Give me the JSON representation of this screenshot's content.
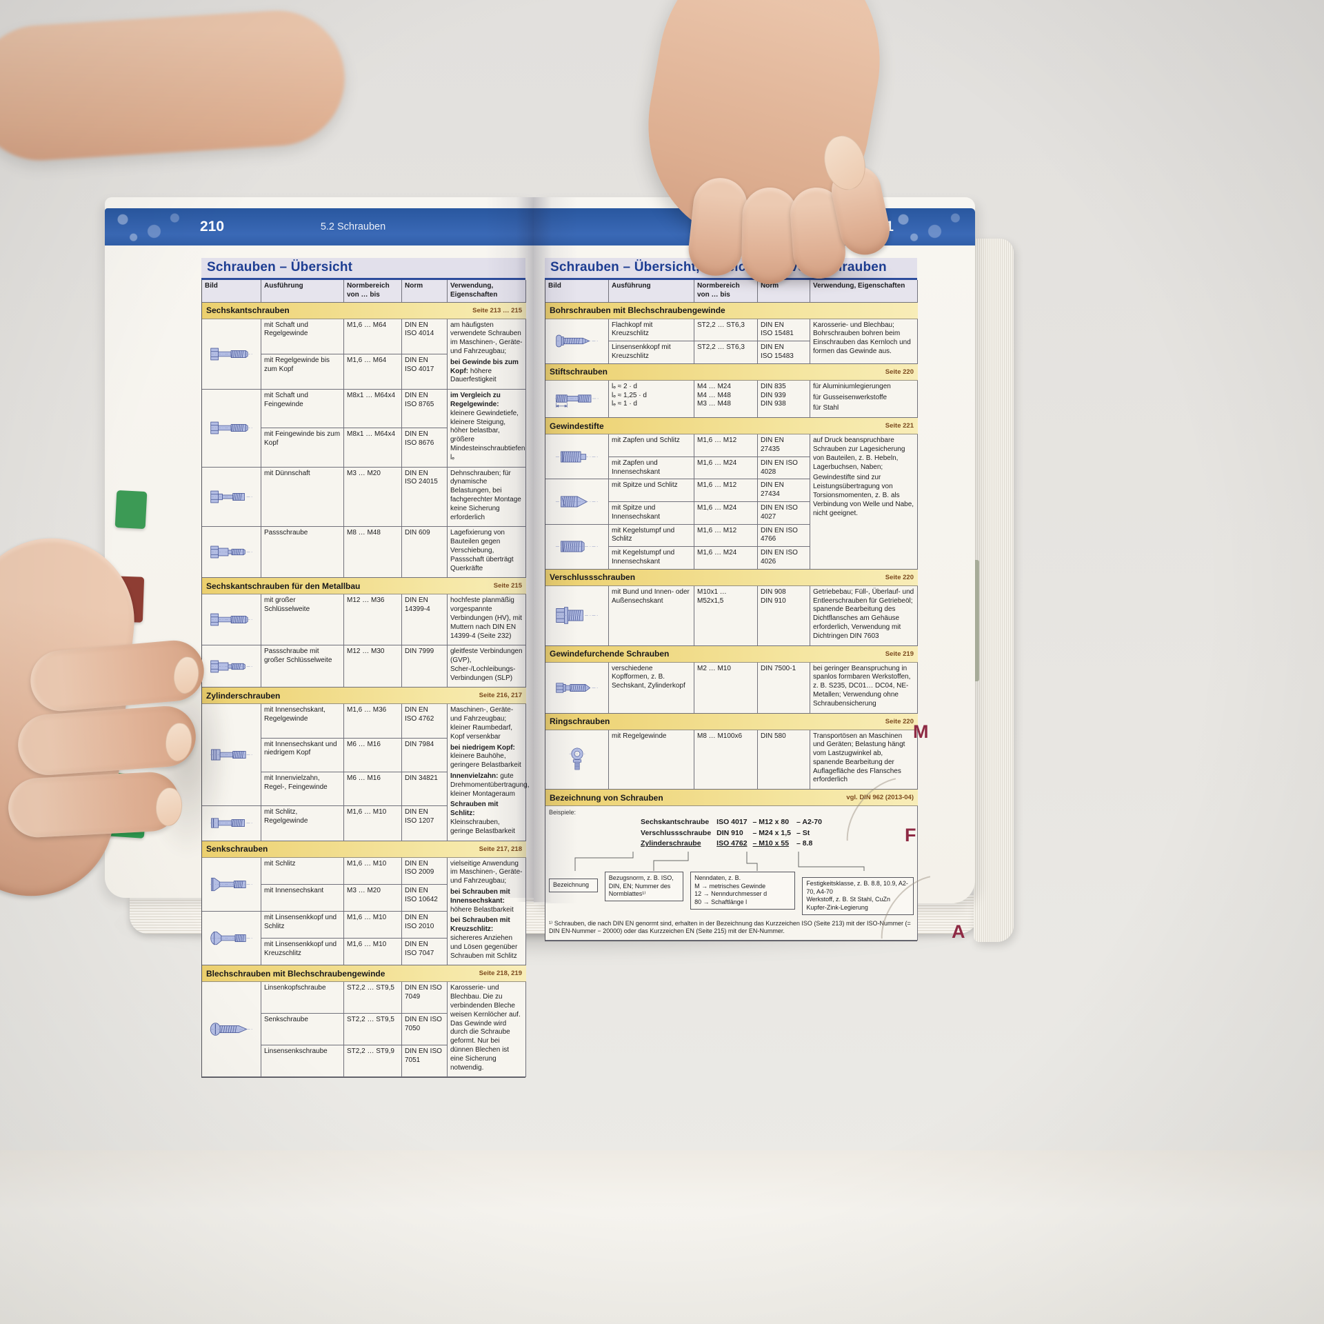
{
  "photo": {
    "header_blue": "#2e5ca7",
    "section_yellow": "#f2dc82",
    "edge_tab_red": "#8e2a44",
    "illustration_blue": "#b3bde3"
  },
  "book": {
    "edge_tabs": [
      "M",
      "F",
      "A"
    ],
    "left_page": {
      "page_number": "210",
      "chapter": "5.2 Schrauben",
      "title": "Schrauben – Übersicht",
      "columns": [
        "Bild",
        "Ausführung",
        "Normbereich\nvon … bis",
        "Norm",
        "Verwendung, Eigenschaften"
      ],
      "sections": [
        {
          "title": "Sechskantschrauben",
          "seite": "Seite 213 … 215",
          "rows": [
            {
              "icon": "hex-bolt",
              "ispan": 2,
              "a": "mit Schaft und Regelgewinde",
              "nb": "M1,6 … M64",
              "norm": "DIN EN\nISO 4014",
              "verw": {
                "span": 2,
                "parts": [
                  {
                    "t": "am häufigsten verwendete Schrauben im Maschinen-, Geräte- und Fahrzeugbau;"
                  },
                  {
                    "b": "bei Gewinde bis zum Kopf:",
                    "t": " höhere Dauerfestigkeit"
                  }
                ]
              }
            },
            {
              "a": "mit Regelgewinde bis zum Kopf",
              "nb": "M1,6 … M64",
              "norm": "DIN EN\nISO 4017"
            },
            {
              "icon": "hex-bolt-fine",
              "ispan": 2,
              "a": "mit Schaft und Feingewinde",
              "nb": "M8x1 … M64x4",
              "norm": "DIN EN\nISO 8765",
              "verw": {
                "span": 2,
                "parts": [
                  {
                    "b": "im Vergleich zu Regelgewinde:",
                    "t": " kleinere Gewindetiefe, kleinere Steigung, höher belastbar, größere Mindesteinschraubtiefen lₑ"
                  }
                ]
              }
            },
            {
              "a": "mit Feingewinde bis zum Kopf",
              "nb": "M8x1 … M64x4",
              "norm": "DIN EN\nISO 8676"
            },
            {
              "icon": "hex-bolt-thin-shaft",
              "a": "mit Dünnschaft",
              "nb": "M3 … M20",
              "norm": "DIN EN\nISO 24015",
              "verw": {
                "span": 1,
                "parts": [
                  {
                    "t": "Dehnschrauben; für dynamische Belastungen, bei fachgerechter Montage keine Sicherung erforderlich"
                  }
                ]
              }
            },
            {
              "icon": "hex-fit-bolt",
              "a": "Passschraube",
              "nb": "M8 … M48",
              "norm": "DIN 609",
              "verw": {
                "span": 1,
                "parts": [
                  {
                    "t": "Lagefixierung von Bauteilen gegen Verschiebung, Passschaft überträgt Querkräfte"
                  }
                ]
              }
            }
          ]
        },
        {
          "title": "Sechskantschrauben für den Metallbau",
          "seite": "Seite 215",
          "rows": [
            {
              "icon": "hex-bolt-large-sw",
              "a": "mit großer Schlüsselweite",
              "nb": "M12 … M36",
              "norm": "DIN EN\n14399-4",
              "verw": {
                "span": 1,
                "parts": [
                  {
                    "t": "hochfeste planmäßig vorgespannte Verbindungen (HV), mit Muttern nach DIN EN 14399-4 (Seite 232)"
                  }
                ]
              }
            },
            {
              "icon": "hex-fit-bolt-large-sw",
              "a": "Passschraube mit großer Schlüsselweite",
              "nb": "M12 … M30",
              "norm": "DIN 7999",
              "verw": {
                "span": 1,
                "parts": [
                  {
                    "t": "gleitfeste Verbindungen (GVP), Scher-/Lochleibungs-Verbindungen (SLP)"
                  }
                ]
              }
            }
          ]
        },
        {
          "title": "Zylinderschrauben",
          "seite": "Seite 216, 217",
          "rows": [
            {
              "icon": "socket-head-screw",
              "ispan": 3,
              "a": "mit Innensechskant, Regelgewinde",
              "nb": "M1,6 … M36",
              "norm": "DIN EN\nISO 4762",
              "verw": {
                "span": 4,
                "parts": [
                  {
                    "t": "Maschinen-, Geräte- und Fahrzeugbau; kleiner Raumbedarf, Kopf versenkbar"
                  },
                  {
                    "b": "bei niedrigem Kopf:",
                    "t": " kleinere Bauhöhe, geringere Belastbarkeit"
                  },
                  {
                    "b": "Innenvielzahn:",
                    "t": " gute Drehmomentübertragung, kleiner Montageraum"
                  },
                  {
                    "b": "Schrauben mit Schlitz:",
                    "t": " Kleinschrauben, geringe Belastbarkeit"
                  }
                ]
              }
            },
            {
              "a": "mit Innensechskant und niedrigem Kopf",
              "nb": "M6 … M16",
              "norm": "DIN 7984"
            },
            {
              "a": "mit Innenvielzahn, Regel-, Feingewinde",
              "nb": "M6 … M16",
              "norm": "DIN 34821"
            },
            {
              "icon": "slotted-cheese-head-screw",
              "a": "mit Schlitz, Regelgewinde",
              "nb": "M1,6 … M10",
              "norm": "DIN EN\nISO 1207"
            }
          ]
        },
        {
          "title": "Senkschrauben",
          "seite": "Seite 217, 218",
          "rows": [
            {
              "icon": "countersunk-screw",
              "ispan": 2,
              "a": "mit Schlitz",
              "nb": "M1,6 … M10",
              "norm": "DIN EN\nISO 2009",
              "verw": {
                "span": 4,
                "parts": [
                  {
                    "t": "vielseitige Anwendung im Maschinen-, Geräte- und Fahrzeugbau;"
                  },
                  {
                    "b": "bei Schrauben mit Innensechskant:",
                    "t": " höhere Belastbarkeit"
                  },
                  {
                    "b": "bei Schrauben mit Kreuzschlitz:",
                    "t": " sichereres Anziehen und Lösen gegenüber Schrauben mit Schlitz"
                  }
                ]
              }
            },
            {
              "a": "mit Innensechskant",
              "nb": "M3 … M20",
              "norm": "DIN EN\nISO 10642"
            },
            {
              "icon": "raised-countersunk-screw",
              "ispan": 2,
              "a": "mit Linsensenkkopf und Schlitz",
              "nb": "M1,6 … M10",
              "norm": "DIN EN\nISO 2010"
            },
            {
              "a": "mit Linsensenkkopf und Kreuzschlitz",
              "nb": "M1,6 … M10",
              "norm": "DIN EN\nISO 7047"
            }
          ]
        },
        {
          "title": "Blechschrauben mit Blechschraubengewinde",
          "seite": "Seite 218, 219",
          "rows": [
            {
              "icon": "sheet-metal-screw",
              "ispan": 3,
              "a": "Linsenkopfschraube",
              "nb": "ST2,2 … ST9,5",
              "norm": "DIN EN ISO\n7049",
              "verw": {
                "span": 3,
                "parts": [
                  {
                    "t": "Karosserie- und Blechbau. Die zu verbindenden Bleche weisen Kernlöcher auf. Das Gewinde wird durch die Schraube geformt. Nur bei dünnen Blechen ist eine Sicherung notwendig."
                  }
                ]
              }
            },
            {
              "a": "Senkschraube",
              "nb": "ST2,2 … ST9,5",
              "norm": "DIN EN ISO\n7050"
            },
            {
              "a": "Linsensenkschraube",
              "nb": "ST2,2 … ST9,9",
              "norm": "DIN EN ISO\n7051"
            }
          ]
        }
      ]
    },
    "right_page": {
      "page_number": "211",
      "chapter": "5.2 Schrauben",
      "title": "Schrauben – Übersicht, Bezeichnung von Schrauben",
      "columns": [
        "Bild",
        "Ausführung",
        "Normbereich\nvon … bis",
        "Norm",
        "Verwendung, Eigenschaften"
      ],
      "sections": [
        {
          "title": "Bohrschrauben mit Blechschraubengewinde",
          "seite": "",
          "rows": [
            {
              "icon": "drilling-screw",
              "ispan": 2,
              "a": "Flachkopf mit Kreuzschlitz",
              "nb": "ST2,2 … ST6,3",
              "norm": "DIN EN\nISO 15481",
              "verw": {
                "span": 2,
                "parts": [
                  {
                    "t": "Karosserie- und Blechbau; Bohrschrauben bohren beim Einschrauben das Kernloch und formen das Gewinde aus."
                  }
                ]
              }
            },
            {
              "a": "Linsensenkkopf mit Kreuzschlitz",
              "nb": "ST2,2 … ST6,3",
              "norm": "DIN EN\nISO 15483"
            }
          ]
        },
        {
          "title": "Stiftschrauben",
          "seite": "Seite 220",
          "rows": [
            {
              "icon": "stud-screw",
              "a": "lₑ ≈ 2 · d\nlₑ ≈ 1,25 · d\nlₑ ≈ 1 · d",
              "nb": "M4 … M24\nM4 … M48\nM3 … M48",
              "norm": "DIN 835\nDIN 939\nDIN 938",
              "verw": {
                "span": 1,
                "parts": [
                  {
                    "t": "für Aluminiumlegierungen"
                  },
                  {
                    "t": "für Gusseisenwerkstoffe"
                  },
                  {
                    "t": "für Stahl"
                  }
                ]
              }
            }
          ]
        },
        {
          "title": "Gewindestifte",
          "seite": "Seite 221",
          "rows": [
            {
              "icon": "grub-screw-zapfen",
              "ispan": 2,
              "a": "mit Zapfen und Schlitz",
              "nb": "M1,6 … M12",
              "norm": "DIN EN\n27435",
              "verw": {
                "span": 6,
                "parts": [
                  {
                    "t": "auf Druck beanspruchbare Schrauben zur Lagesicherung von Bauteilen, z. B. Hebeln, Lagerbuchsen, Naben;"
                  },
                  {
                    "t": "Gewindestifte sind zur Leistungsübertragung von Torsionsmomenten, z. B. als Verbindung von Welle und Nabe, nicht geeignet."
                  }
                ]
              }
            },
            {
              "a": "mit Zapfen und Innensechskant",
              "nb": "M1,6 … M24",
              "norm": "DIN EN ISO\n4028"
            },
            {
              "icon": "grub-screw-spitze",
              "ispan": 2,
              "a": "mit Spitze und Schlitz",
              "nb": "M1,6 … M12",
              "norm": "DIN EN\n27434"
            },
            {
              "a": "mit Spitze und Innensechskant",
              "nb": "M1,6 … M24",
              "norm": "DIN EN ISO\n4027"
            },
            {
              "icon": "grub-screw-kegelstumpf",
              "ispan": 2,
              "a": "mit Kegelstumpf und Schlitz",
              "nb": "M1,6 … M12",
              "norm": "DIN EN ISO\n4766"
            },
            {
              "a": "mit Kegelstumpf und Innensechskant",
              "nb": "M1,6 … M24",
              "norm": "DIN EN ISO\n4026"
            }
          ]
        },
        {
          "title": "Verschlussschrauben",
          "seite": "Seite 220",
          "rows": [
            {
              "icon": "plug-screw",
              "a": "mit Bund und Innen- oder Außensechskant",
              "nb": "M10x1 …\nM52x1,5",
              "norm": "DIN 908\nDIN 910",
              "verw": {
                "span": 1,
                "parts": [
                  {
                    "t": "Getriebebau; Füll-, Überlauf- und Entleerschrauben für Getriebeöl; spanende Bearbeitung des Dichtflansches am Gehäuse erforderlich, Verwendung mit Dichtringen DIN 7603"
                  }
                ]
              }
            }
          ]
        },
        {
          "title": "Gewindefurchende Schrauben",
          "seite": "Seite 219",
          "rows": [
            {
              "icon": "thread-forming-screw",
              "a": "verschiedene Kopfformen, z. B. Sechskant, Zylinderkopf",
              "nb": "M2 … M10",
              "norm": "DIN 7500-1",
              "verw": {
                "span": 1,
                "parts": [
                  {
                    "t": "bei geringer Beanspruchung in spanlos formbaren Werkstoffen, z. B. S235, DC01… DC04, NE-Metallen; Verwendung ohne Schraubensicherung"
                  }
                ]
              }
            }
          ]
        },
        {
          "title": "Ringschrauben",
          "seite": "Seite 220",
          "rows": [
            {
              "icon": "eye-bolt",
              "a": "mit Regelgewinde",
              "nb": "M8 … M100x6",
              "norm": "DIN 580",
              "verw": {
                "span": 1,
                "parts": [
                  {
                    "t": "Transportösen an Maschinen und Geräten; Belastung hängt vom Lastzugwinkel ab, spanende Bearbeitung der Auflagefläche des Flansches erforderlich"
                  }
                ]
              }
            }
          ]
        }
      ],
      "bezeichnung": {
        "title": "Bezeichnung von Schrauben",
        "ref": "vgl. DIN 962 (2013-04)",
        "beispiele_label": "Beispiele:",
        "examples": [
          {
            "n": "Sechskantschraube",
            "s": "ISO 4017",
            "m": "– M12 x 80",
            "f": "– A2-70"
          },
          {
            "n": "Verschlussschraube",
            "s": "DIN 910",
            "m": "– M24 x 1,5",
            "f": "– St"
          },
          {
            "n": "Zylinderschraube",
            "s": "ISO 4762",
            "m": "– M10 x 55",
            "f": "– 8.8"
          }
        ],
        "boxes": [
          "Bezeichnung",
          "Bezugsnorm, z. B. ISO, DIN, EN; Nummer des Normblattes¹⁾",
          "Nenndaten, z. B.\nM → metrisches Gewinde\n12 → Nenndurchmesser d\n80 → Schaftlänge l",
          "Festigkeitsklasse, z. B. 8.8, 10.9, A2-70, A4-70\nWerkstoff, z. B. St Stahl, CuZn Kupfer-Zink-Legierung"
        ],
        "footnote": "¹⁾ Schrauben, die nach DIN EN genormt sind, erhalten in der Bezeichnung das Kurzzeichen ISO (Seite 213) mit der ISO-Nummer (= DIN EN-Nummer − 20000) oder das Kurzzeichen EN (Seite 215) mit der EN-Nummer."
      }
    }
  }
}
